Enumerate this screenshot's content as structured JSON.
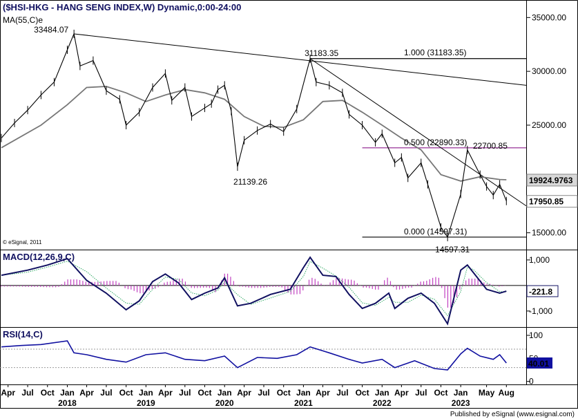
{
  "chart_data": [
    {
      "type": "line",
      "panel": "price",
      "title": "($HSI-HKG - HANG SENG INDEX,W) Dynamic,0:00-24:00",
      "indicator_label": "MA(55,C)e",
      "watermark": "© eSignal, 2011",
      "yticks": [
        15000,
        20000,
        25000,
        30000,
        35000
      ],
      "ytick_labels": [
        "15000.00",
        "20000.00",
        "25000.00",
        "30000.00",
        "35000.00"
      ],
      "ylim": [
        13500,
        36500
      ],
      "x_timeline_date_ticks": [
        "2017-04",
        "2017-07",
        "2017-10",
        "2018-01",
        "2018-04",
        "2018-07",
        "2018-10",
        "2019-01",
        "2019-04",
        "2019-07",
        "2019-10",
        "2020-01",
        "2020-04",
        "2020-07",
        "2020-10",
        "2021-01",
        "2021-04",
        "2021-07",
        "2021-10",
        "2022-01",
        "2022-04",
        "2022-07",
        "2022-10",
        "2023-01",
        "2023-05",
        "2023-08"
      ],
      "x_month_labels": [
        "Apr",
        "Jul",
        "Oct",
        "Jan",
        "Apr",
        "Jul",
        "Oct",
        "Jan",
        "Apr",
        "Jul",
        "Oct",
        "Jan",
        "Apr",
        "Jul",
        "Oct",
        "Jan",
        "Apr",
        "Jul",
        "Oct",
        "Jan",
        "Apr",
        "Jul",
        "Oct",
        "Jan",
        "May",
        "Aug"
      ],
      "x_year_labels": [
        "2018",
        "2019",
        "2020",
        "2021",
        "2022",
        "2023"
      ],
      "x_year_dates": [
        "2018-01",
        "2019-01",
        "2020-01",
        "2021-01",
        "2022-01",
        "2023-01"
      ],
      "series": [
        {
          "role": "price",
          "x": [
            "2017-03",
            "2017-05",
            "2017-07",
            "2017-09",
            "2017-11",
            "2018-01",
            "2018-02",
            "2018-03",
            "2018-05",
            "2018-07",
            "2018-09",
            "2018-10",
            "2018-12",
            "2019-02",
            "2019-04",
            "2019-05",
            "2019-07",
            "2019-08",
            "2019-10",
            "2019-11",
            "2019-12",
            "2020-01",
            "2020-02",
            "2020-03",
            "2020-04",
            "2020-06",
            "2020-08",
            "2020-10",
            "2020-12",
            "2021-02",
            "2021-03",
            "2021-05",
            "2021-07",
            "2021-08",
            "2021-10",
            "2021-12",
            "2022-01",
            "2022-03",
            "2022-04",
            "2022-05",
            "2022-07",
            "2022-08",
            "2022-10",
            "2022-11",
            "2023-01",
            "2023-02",
            "2023-04",
            "2023-05",
            "2023-06",
            "2023-07",
            "2023-08"
          ],
          "values": [
            23800,
            25200,
            26400,
            27800,
            29000,
            32000,
            33484,
            30500,
            31000,
            28200,
            27400,
            25000,
            26200,
            28500,
            29800,
            27300,
            28500,
            25800,
            26600,
            27000,
            28300,
            28700,
            26300,
            21139,
            23600,
            24500,
            25100,
            24400,
            26500,
            31183,
            29000,
            28700,
            28000,
            26000,
            25000,
            23400,
            24200,
            21500,
            22000,
            20100,
            21500,
            19500,
            15500,
            14597,
            18600,
            22700,
            20400,
            19300,
            18500,
            19500,
            17951
          ]
        },
        {
          "role": "MA(55,C)e",
          "x": [
            "2017-03",
            "2017-09",
            "2018-01",
            "2018-04",
            "2018-07",
            "2018-10",
            "2019-01",
            "2019-04",
            "2019-07",
            "2019-10",
            "2020-01",
            "2020-04",
            "2020-07",
            "2020-10",
            "2021-01",
            "2021-04",
            "2021-07",
            "2021-10",
            "2022-01",
            "2022-04",
            "2022-07",
            "2022-10",
            "2023-01",
            "2023-04",
            "2023-07",
            "2023-08"
          ],
          "values": [
            22900,
            25000,
            26900,
            28500,
            28600,
            28000,
            27200,
            27800,
            28300,
            28000,
            27400,
            25800,
            24900,
            24800,
            25500,
            27200,
            27300,
            26200,
            25000,
            23800,
            22700,
            20400,
            19800,
            20200,
            19950,
            19924.9763
          ]
        }
      ],
      "annotations": [
        {
          "text": "33484.07",
          "x": "2018-02",
          "value": 33484.07
        },
        {
          "text": "31183.35",
          "x": "2021-02",
          "value": 31183.35
        },
        {
          "text": "21139.26",
          "x": "2020-03",
          "value": 21139.26
        },
        {
          "text": "22700.85",
          "x": "2023-02",
          "value": 22700.85
        },
        {
          "text": "14597.31",
          "x": "2022-11",
          "value": 14597.31
        },
        {
          "text": "1.000 (31183.35)",
          "value": 31183.35
        },
        {
          "text": "0.500 (22890.33)",
          "value": 22890.33
        },
        {
          "text": "0.000 (14597.31)",
          "value": 14597.31
        }
      ],
      "fib_lines": [
        {
          "level": 1.0,
          "value": 31183.35,
          "from": "2021-02",
          "to": "2023-11",
          "color": "#000000"
        },
        {
          "level": 0.5,
          "value": 22890.33,
          "from": "2021-10",
          "to": "2023-11",
          "color": "#8b1a8b"
        },
        {
          "level": 0.0,
          "value": 14597.31,
          "from": "2021-10",
          "to": "2023-11",
          "color": "#000000"
        }
      ],
      "trend_lines": [
        {
          "from": {
            "x": "2018-02",
            "value": 33484.07
          },
          "to": {
            "x": "2023-11",
            "value": 28700
          }
        },
        {
          "from": {
            "x": "2021-02",
            "value": 31183.35
          },
          "to": {
            "x": "2023-11",
            "value": 17500
          }
        }
      ],
      "price_tags": [
        {
          "text": "19924.9763",
          "value": 19924.9763,
          "bg": "#d8d8d8",
          "fg": "#000000"
        },
        {
          "text": "17950.85",
          "value": 17950.85,
          "bg": "#ffffff",
          "fg": "#cc0000"
        }
      ],
      "colors": {
        "price": "#000000",
        "ma": "#777777",
        "fib_mid": "#8b1a8b"
      }
    },
    {
      "type": "line",
      "panel": "macd",
      "title": "MACD(12,26,9,C)",
      "yticks": [
        1000,
        -1000
      ],
      "ytick_labels": [
        "1,000",
        "-1,000"
      ],
      "ylim": [
        -1600,
        1350
      ],
      "series": [
        {
          "role": "macd",
          "x": [
            "2017-03",
            "2017-07",
            "2017-10",
            "2018-01",
            "2018-04",
            "2018-07",
            "2018-10",
            "2018-12",
            "2019-02",
            "2019-04",
            "2019-06",
            "2019-08",
            "2019-10",
            "2019-12",
            "2020-01",
            "2020-03",
            "2020-05",
            "2020-08",
            "2020-11",
            "2021-01",
            "2021-02",
            "2021-04",
            "2021-06",
            "2021-08",
            "2021-10",
            "2021-12",
            "2022-02",
            "2022-03",
            "2022-05",
            "2022-07",
            "2022-09",
            "2022-11",
            "2023-01",
            "2023-02",
            "2023-03",
            "2023-05",
            "2023-07",
            "2023-08"
          ],
          "values": [
            400,
            600,
            800,
            1050,
            200,
            -300,
            -950,
            -600,
            150,
            450,
            100,
            -550,
            -300,
            -100,
            300,
            -800,
            -700,
            -350,
            -150,
            700,
            1100,
            400,
            350,
            -350,
            -900,
            -700,
            -300,
            -900,
            -500,
            -300,
            -700,
            -1500,
            600,
            800,
            500,
            -150,
            -300,
            -221.8
          ]
        }
      ],
      "value_tags": [
        {
          "text": "-221.8",
          "value": -221.8
        }
      ]
    },
    {
      "type": "line",
      "panel": "rsi",
      "title": "RSI(14,C)",
      "yticks": [
        100,
        50,
        0
      ],
      "ytick_labels": [
        "100",
        "50",
        "0"
      ],
      "ylim": [
        -5,
        115
      ],
      "series": [
        {
          "role": "rsi",
          "x": [
            "2017-03",
            "2017-06",
            "2017-09",
            "2018-01",
            "2018-02",
            "2018-04",
            "2018-07",
            "2018-10",
            "2019-01",
            "2019-04",
            "2019-07",
            "2019-10",
            "2020-01",
            "2020-03",
            "2020-06",
            "2020-09",
            "2020-12",
            "2021-02",
            "2021-05",
            "2021-08",
            "2021-10",
            "2022-01",
            "2022-03",
            "2022-06",
            "2022-09",
            "2022-11",
            "2023-01",
            "2023-02",
            "2023-04",
            "2023-06",
            "2023-07",
            "2023-08"
          ],
          "values": [
            75,
            78,
            80,
            88,
            62,
            58,
            48,
            42,
            58,
            62,
            48,
            45,
            55,
            30,
            52,
            50,
            58,
            75,
            62,
            48,
            40,
            48,
            30,
            45,
            28,
            25,
            60,
            72,
            55,
            48,
            58,
            40.01
          ]
        }
      ],
      "value_tags": [
        {
          "text": "40.01",
          "value": 40.01
        }
      ]
    }
  ],
  "footer": "Published by eSignal (www.esignal.com)"
}
